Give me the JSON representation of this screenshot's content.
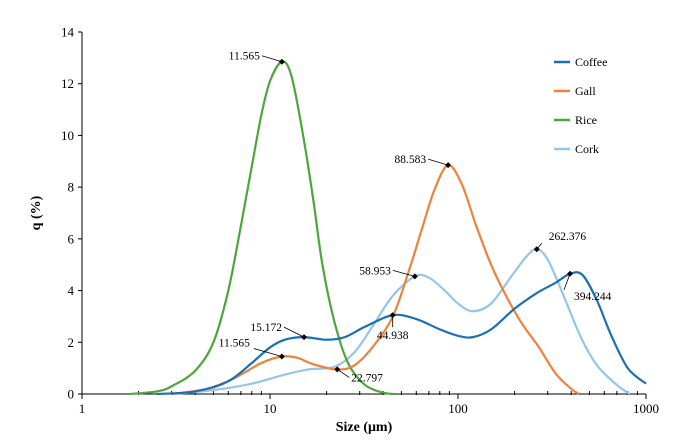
{
  "chart_data": {
    "type": "line",
    "title": "",
    "xlabel": "Size (μm)",
    "ylabel": "q (%)",
    "xscale": "log",
    "xlim": [
      1,
      1000
    ],
    "ylim": [
      0,
      14
    ],
    "xticks": [
      "1",
      "10",
      "100",
      "1000"
    ],
    "yticks": [
      "0",
      "2",
      "4",
      "6",
      "8",
      "10",
      "12",
      "14"
    ],
    "grid": false,
    "legend_position": "top-right",
    "series": [
      {
        "name": "Coffee",
        "color": "#1a6fb5",
        "points": [
          [
            2.5,
            0
          ],
          [
            4,
            0.1
          ],
          [
            6,
            0.5
          ],
          [
            8,
            1.2
          ],
          [
            10,
            1.8
          ],
          [
            12,
            2.1
          ],
          [
            15.172,
            2.2
          ],
          [
            20,
            2.1
          ],
          [
            25,
            2.2
          ],
          [
            32,
            2.6
          ],
          [
            44.938,
            3.05
          ],
          [
            60,
            2.9
          ],
          [
            80,
            2.5
          ],
          [
            100,
            2.25
          ],
          [
            120,
            2.2
          ],
          [
            150,
            2.5
          ],
          [
            200,
            3.3
          ],
          [
            262,
            3.9
          ],
          [
            330,
            4.3
          ],
          [
            394.244,
            4.65
          ],
          [
            460,
            4.6
          ],
          [
            550,
            3.6
          ],
          [
            650,
            2.3
          ],
          [
            800,
            1.0
          ],
          [
            1000,
            0.4
          ]
        ]
      },
      {
        "name": "Gall",
        "color": "#f0813a",
        "points": [
          [
            3,
            0
          ],
          [
            5,
            0.25
          ],
          [
            7,
            0.75
          ],
          [
            9,
            1.2
          ],
          [
            11.565,
            1.45
          ],
          [
            14,
            1.4
          ],
          [
            17,
            1.15
          ],
          [
            22.797,
            0.95
          ],
          [
            28,
            1.1
          ],
          [
            35,
            1.8
          ],
          [
            45,
            3.0
          ],
          [
            55,
            4.8
          ],
          [
            65,
            6.5
          ],
          [
            75,
            7.9
          ],
          [
            88.583,
            8.85
          ],
          [
            105,
            8.1
          ],
          [
            125,
            6.5
          ],
          [
            150,
            5.0
          ],
          [
            180,
            3.8
          ],
          [
            220,
            2.7
          ],
          [
            270,
            1.8
          ],
          [
            330,
            0.8
          ],
          [
            400,
            0.2
          ],
          [
            440,
            0
          ]
        ]
      },
      {
        "name": "Rice",
        "color": "#4ca63d",
        "points": [
          [
            1.8,
            0
          ],
          [
            2.5,
            0.1
          ],
          [
            3,
            0.3
          ],
          [
            4,
            0.9
          ],
          [
            5,
            2.0
          ],
          [
            6,
            4.0
          ],
          [
            7,
            6.5
          ],
          [
            8,
            8.8
          ],
          [
            9,
            10.8
          ],
          [
            10,
            12.1
          ],
          [
            11.565,
            12.85
          ],
          [
            13,
            12.3
          ],
          [
            15,
            10.0
          ],
          [
            17,
            7.5
          ],
          [
            19,
            5.0
          ],
          [
            22,
            2.8
          ],
          [
            26,
            1.2
          ],
          [
            32,
            0.35
          ],
          [
            40,
            0.05
          ],
          [
            45,
            0
          ]
        ]
      },
      {
        "name": "Cork",
        "color": "#93c6ea",
        "points": [
          [
            3,
            0
          ],
          [
            5,
            0.15
          ],
          [
            8,
            0.4
          ],
          [
            12,
            0.75
          ],
          [
            16,
            0.95
          ],
          [
            22,
            1.05
          ],
          [
            28,
            1.6
          ],
          [
            35,
            2.6
          ],
          [
            45,
            3.8
          ],
          [
            58.953,
            4.55
          ],
          [
            70,
            4.5
          ],
          [
            85,
            4.0
          ],
          [
            100,
            3.5
          ],
          [
            120,
            3.2
          ],
          [
            150,
            3.5
          ],
          [
            190,
            4.5
          ],
          [
            230,
            5.3
          ],
          [
            262.376,
            5.6
          ],
          [
            300,
            5.2
          ],
          [
            360,
            3.9
          ],
          [
            450,
            2.2
          ],
          [
            550,
            1.1
          ],
          [
            700,
            0.35
          ],
          [
            820,
            0
          ]
        ]
      }
    ],
    "annotations": [
      {
        "text": "11.565",
        "series": "Rice",
        "x": 11.565,
        "y": 12.85
      },
      {
        "text": "88.583",
        "series": "Gall",
        "x": 88.583,
        "y": 8.85
      },
      {
        "text": "262.376",
        "series": "Cork",
        "x": 262.376,
        "y": 5.6
      },
      {
        "text": "58.953",
        "series": "Cork",
        "x": 58.953,
        "y": 4.55
      },
      {
        "text": "394.244",
        "series": "Coffee",
        "x": 394.244,
        "y": 4.65
      },
      {
        "text": "15.172",
        "series": "Coffee",
        "x": 15.172,
        "y": 2.2
      },
      {
        "text": "44.938",
        "series": "Coffee",
        "x": 44.938,
        "y": 3.05
      },
      {
        "text": "11.565",
        "series": "Gall",
        "x": 11.565,
        "y": 1.45
      },
      {
        "text": "22.797",
        "series": "Gall",
        "x": 22.797,
        "y": 0.95
      }
    ]
  }
}
